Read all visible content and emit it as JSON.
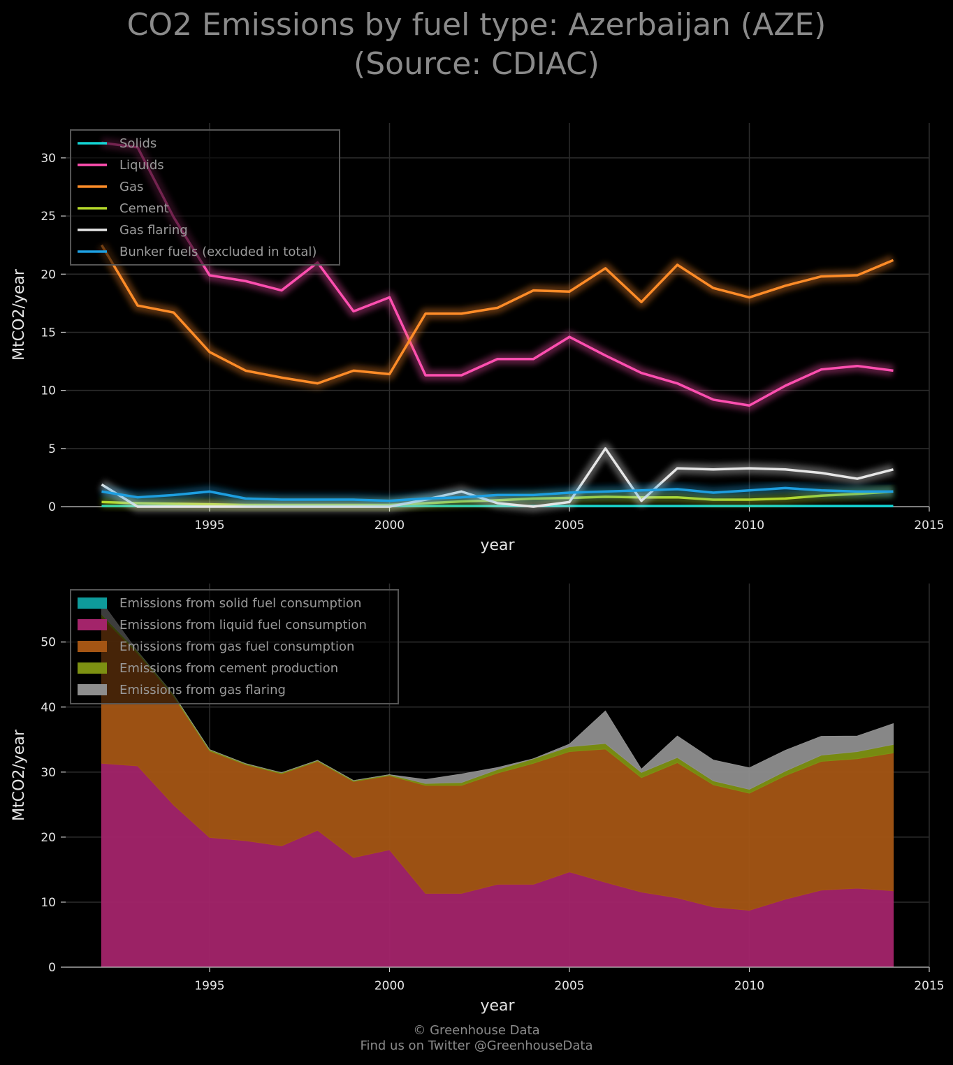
{
  "title": {
    "line1": "CO2 Emissions by fuel type: Azerbaijan (AZE)",
    "line2": "(Source: CDIAC)"
  },
  "footer": {
    "line1": "© Greenhouse Data",
    "line2": "Find us on Twitter @GreenhouseData"
  },
  "chart_data": [
    {
      "type": "line",
      "xlabel": "year",
      "ylabel": "MtCO2/year",
      "xlim": [
        1991,
        2015
      ],
      "ylim": [
        0,
        33
      ],
      "xticks": [
        1995,
        2000,
        2005,
        2010,
        2015
      ],
      "yticks": [
        0,
        5,
        10,
        15,
        20,
        25,
        30
      ],
      "grid": true,
      "legend_position": "top-left",
      "x": [
        1992,
        1993,
        1994,
        1995,
        1996,
        1997,
        1998,
        1999,
        2000,
        2001,
        2002,
        2003,
        2004,
        2005,
        2006,
        2007,
        2008,
        2009,
        2010,
        2011,
        2012,
        2013,
        2014
      ],
      "series": [
        {
          "name": "Solids",
          "color": "#12d4d4",
          "values": [
            0.05,
            0.05,
            0.05,
            0.05,
            0.05,
            0.05,
            0.05,
            0.05,
            0.05,
            0.05,
            0.05,
            0.05,
            0.05,
            0.05,
            0.05,
            0.05,
            0.05,
            0.05,
            0.05,
            0.05,
            0.05,
            0.05,
            0.05
          ]
        },
        {
          "name": "Liquids",
          "color": "#ff4fb0",
          "values": [
            31.3,
            30.9,
            24.9,
            19.9,
            19.4,
            18.6,
            21.0,
            16.8,
            18.0,
            11.3,
            11.3,
            12.7,
            12.7,
            14.6,
            13.0,
            11.5,
            10.6,
            9.2,
            8.7,
            10.4,
            11.8,
            12.1,
            11.7
          ]
        },
        {
          "name": "Gas",
          "color": "#ff8c28",
          "values": [
            22.5,
            17.3,
            16.7,
            13.3,
            11.7,
            11.1,
            10.6,
            11.7,
            11.4,
            16.6,
            16.6,
            17.1,
            18.6,
            18.5,
            20.5,
            17.6,
            20.8,
            18.8,
            18.0,
            19.0,
            19.8,
            19.9,
            21.2
          ]
        },
        {
          "name": "Cement",
          "color": "#b5d92a",
          "values": [
            0.4,
            0.3,
            0.25,
            0.2,
            0.15,
            0.15,
            0.15,
            0.15,
            0.15,
            0.3,
            0.45,
            0.55,
            0.7,
            0.75,
            0.85,
            0.8,
            0.8,
            0.6,
            0.6,
            0.7,
            0.95,
            1.1,
            1.3
          ]
        },
        {
          "name": "Gas flaring",
          "color": "#e6e6e6",
          "values": [
            1.9,
            0.0,
            0.0,
            0.0,
            0.0,
            0.0,
            0.0,
            0.0,
            0.0,
            0.6,
            1.3,
            0.3,
            0.0,
            0.4,
            5.0,
            0.5,
            3.3,
            3.2,
            3.3,
            3.2,
            2.9,
            2.4,
            3.2
          ]
        },
        {
          "name": "Bunker fuels (excluded in total)",
          "color": "#1d9ee0",
          "values": [
            1.3,
            0.8,
            1.0,
            1.3,
            0.7,
            0.6,
            0.6,
            0.6,
            0.5,
            0.7,
            0.8,
            1.0,
            1.0,
            1.2,
            1.3,
            1.4,
            1.5,
            1.2,
            1.4,
            1.6,
            1.4,
            1.3,
            1.3
          ]
        }
      ]
    },
    {
      "type": "area",
      "stacked": true,
      "xlabel": "year",
      "ylabel": "MtCO2/year",
      "xlim": [
        1991,
        2015
      ],
      "ylim": [
        0,
        59
      ],
      "xticks": [
        1995,
        2000,
        2005,
        2010,
        2015
      ],
      "yticks": [
        0,
        10,
        20,
        30,
        40,
        50
      ],
      "grid": true,
      "legend_position": "top-left",
      "x": [
        1992,
        1993,
        1994,
        1995,
        1996,
        1997,
        1998,
        1999,
        2000,
        2001,
        2002,
        2003,
        2004,
        2005,
        2006,
        2007,
        2008,
        2009,
        2010,
        2011,
        2012,
        2013,
        2014
      ],
      "series": [
        {
          "name": "Emissions from solid fuel consumption",
          "color": "#0e9a9a",
          "values": [
            0.05,
            0.05,
            0.05,
            0.05,
            0.05,
            0.05,
            0.05,
            0.05,
            0.05,
            0.05,
            0.05,
            0.05,
            0.05,
            0.05,
            0.05,
            0.05,
            0.05,
            0.05,
            0.05,
            0.05,
            0.05,
            0.05,
            0.05
          ]
        },
        {
          "name": "Emissions from liquid fuel consumption",
          "color": "#a3246a",
          "values": [
            31.3,
            30.9,
            24.9,
            19.9,
            19.4,
            18.6,
            21.0,
            16.8,
            18.0,
            11.3,
            11.3,
            12.7,
            12.7,
            14.6,
            13.0,
            11.5,
            10.6,
            9.2,
            8.7,
            10.4,
            11.8,
            12.1,
            11.7
          ]
        },
        {
          "name": "Emissions from gas fuel consumption",
          "color": "#a45514",
          "values": [
            22.5,
            17.3,
            16.7,
            13.3,
            11.7,
            11.1,
            10.6,
            11.7,
            11.4,
            16.6,
            16.6,
            17.1,
            18.6,
            18.5,
            20.5,
            17.6,
            20.8,
            18.8,
            18.0,
            19.0,
            19.8,
            19.9,
            21.2
          ]
        },
        {
          "name": "Emissions from cement production",
          "color": "#7d9112",
          "values": [
            0.4,
            0.3,
            0.25,
            0.2,
            0.15,
            0.15,
            0.15,
            0.15,
            0.15,
            0.3,
            0.45,
            0.55,
            0.7,
            0.75,
            0.85,
            0.8,
            0.8,
            0.6,
            0.6,
            0.7,
            0.95,
            1.1,
            1.3
          ]
        },
        {
          "name": "Emissions from gas flaring",
          "color": "#8e8e8e",
          "values": [
            1.9,
            0.0,
            0.0,
            0.0,
            0.0,
            0.0,
            0.0,
            0.0,
            0.0,
            0.6,
            1.3,
            0.3,
            0.0,
            0.4,
            5.0,
            0.5,
            3.3,
            3.2,
            3.3,
            3.2,
            2.9,
            2.4,
            3.2
          ]
        }
      ]
    }
  ]
}
